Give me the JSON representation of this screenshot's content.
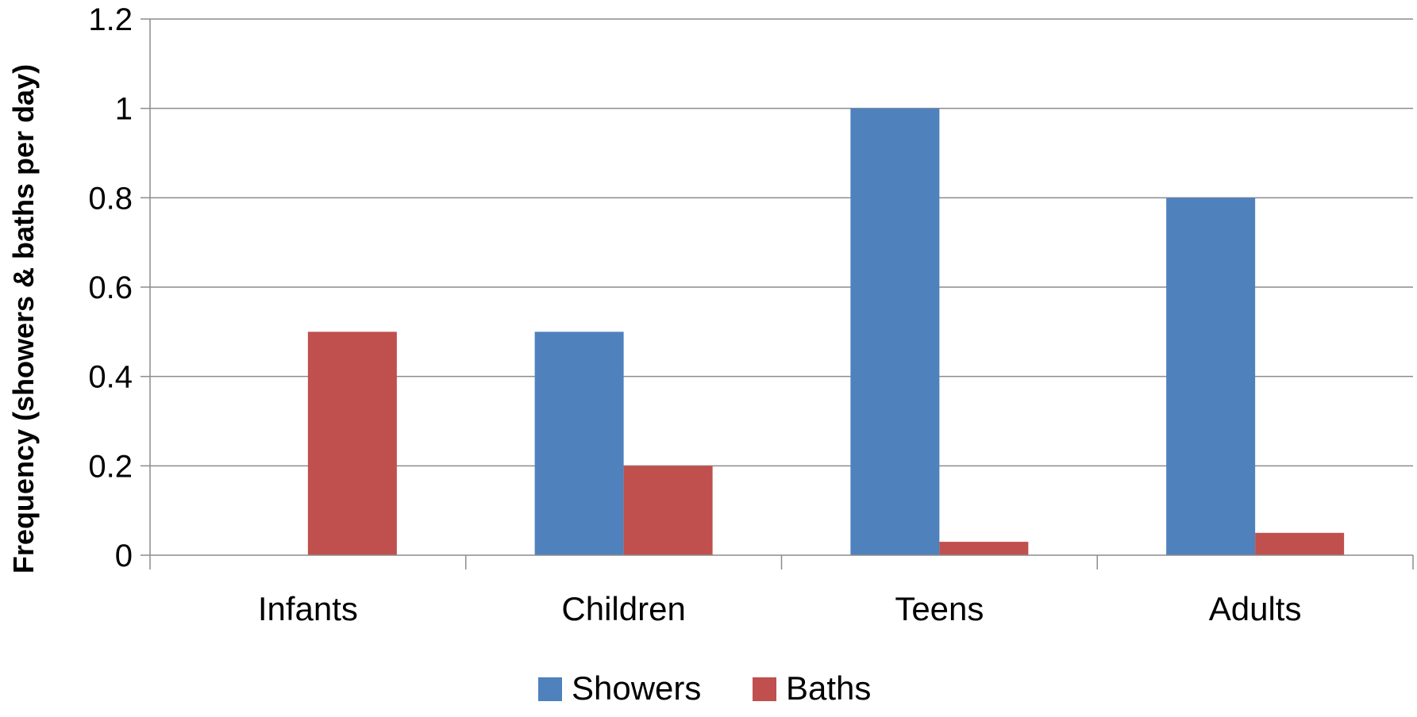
{
  "chart_data": {
    "type": "bar",
    "title": "",
    "xlabel": "",
    "ylabel": "Frequency (showers & baths per day)",
    "ylim": [
      0,
      1.2
    ],
    "yticks": [
      "0",
      "0.2",
      "0.4",
      "0.6",
      "0.8",
      "1",
      "1.2"
    ],
    "categories": [
      "Infants",
      "Children",
      "Teens",
      "Adults"
    ],
    "series": [
      {
        "name": "Showers",
        "color": "#4F81BD",
        "values": [
          0,
          0.5,
          1.0,
          0.8
        ]
      },
      {
        "name": "Baths",
        "color": "#C0504D",
        "values": [
          0.5,
          0.2,
          0.03,
          0.05
        ]
      }
    ],
    "grid": true,
    "legend": "bottom"
  }
}
